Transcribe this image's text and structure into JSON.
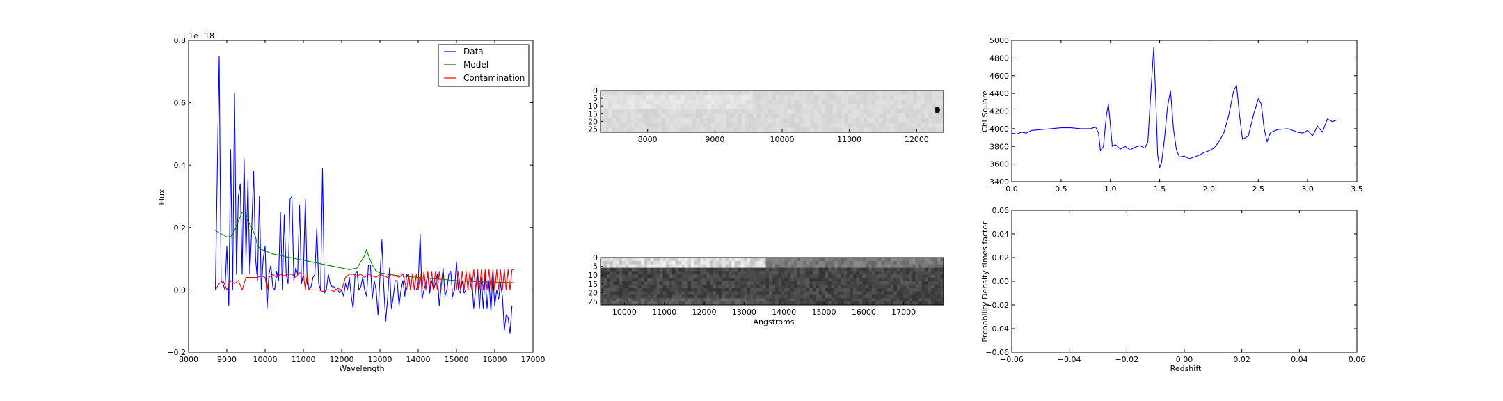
{
  "chart_data": [
    {
      "type": "line",
      "panel": "left",
      "title": "",
      "xlabel": "Wavelength",
      "ylabel": "Flux",
      "offset_text": "1e−18",
      "xlim": [
        8000,
        17000
      ],
      "ylim": [
        -0.2,
        0.8
      ],
      "xticks": [
        8000,
        9000,
        10000,
        11000,
        12000,
        13000,
        14000,
        15000,
        16000,
        17000
      ],
      "yticks": [
        -0.2,
        0.0,
        0.2,
        0.4,
        0.6,
        0.8
      ],
      "ytick_labels": [
        "−0.2",
        "0.0",
        "0.2",
        "0.4",
        "0.6",
        "0.8"
      ],
      "legend_position": "top-right",
      "series": [
        {
          "name": "Data",
          "color": "#0000ff",
          "x": [
            8700,
            8800,
            8850,
            8900,
            8950,
            9000,
            9050,
            9100,
            9150,
            9200,
            9250,
            9300,
            9350,
            9400,
            9450,
            9500,
            9550,
            9600,
            9650,
            9700,
            9750,
            9800,
            9850,
            9900,
            9950,
            10000,
            10050,
            10100,
            10150,
            10200,
            10250,
            10300,
            10350,
            10400,
            10450,
            10500,
            10550,
            10600,
            10650,
            10700,
            10750,
            10800,
            10850,
            10900,
            10950,
            11000,
            11050,
            11100,
            11150,
            11200,
            11250,
            11300,
            11350,
            11400,
            11450,
            11500,
            11550,
            11600,
            11650,
            11700,
            11750,
            11800,
            11850,
            11900,
            11950,
            12000,
            12050,
            12100,
            12150,
            12200,
            12250,
            12300,
            12350,
            12400,
            12450,
            12500,
            12550,
            12600,
            12650,
            12700,
            12750,
            12800,
            12850,
            12900,
            12950,
            13000,
            13050,
            13100,
            13150,
            13200,
            13250,
            13300,
            13350,
            13400,
            13450,
            13500,
            13550,
            13600,
            13650,
            13700,
            13750,
            13800,
            13850,
            13900,
            13950,
            14000,
            14050,
            14100,
            14150,
            14200,
            14250,
            14300,
            14350,
            14400,
            14450,
            14500,
            14550,
            14600,
            14650,
            14700,
            14750,
            14800,
            14850,
            14900,
            14950,
            15000,
            15050,
            15100,
            15150,
            15200,
            15250,
            15300,
            15350,
            15400,
            15450,
            15500,
            15550,
            15600,
            15650,
            15700,
            15750,
            15800,
            15850,
            15900,
            15950,
            16000,
            16050,
            16100,
            16150,
            16200,
            16250,
            16300,
            16350,
            16400,
            16450
          ],
          "y": [
            0.0,
            0.75,
            0.03,
            0.02,
            0.0,
            0.14,
            -0.05,
            0.45,
            0.0,
            0.63,
            0.05,
            0.3,
            0.34,
            0.05,
            0.42,
            0.1,
            0.35,
            0.05,
            0.2,
            0.38,
            0.1,
            0.03,
            0.3,
            0.0,
            0.1,
            0.14,
            -0.06,
            0.05,
            0.08,
            0.01,
            0.0,
            0.06,
            0.03,
            0.25,
            0.0,
            0.24,
            0.05,
            0.02,
            0.29,
            0.3,
            0.03,
            0.07,
            0.05,
            0.27,
            0.02,
            0.05,
            0.29,
            0.02,
            0.0,
            0.01,
            0.04,
            0.05,
            0.2,
            0.02,
            0.0,
            0.39,
            -0.01,
            0.0,
            0.05,
            0.02,
            0.01,
            0.01,
            0.0,
            0.0,
            -0.01,
            0.0,
            -0.02,
            0.02,
            0.0,
            0.04,
            -0.02,
            -0.06,
            0.05,
            0.06,
            0.0,
            0.01,
            0.04,
            0.0,
            -0.02,
            0.08,
            0.08,
            -0.03,
            0.03,
            0.0,
            -0.08,
            0.04,
            0.16,
            0.01,
            -0.1,
            -0.03,
            0.07,
            -0.06,
            -0.02,
            0.03,
            0.03,
            -0.05,
            0.0,
            0.03,
            -0.02,
            0.05,
            0.04,
            0.0,
            0.05,
            0.0,
            0.0,
            0.02,
            0.18,
            -0.03,
            0.0,
            0.02,
            0.05,
            -0.01,
            0.03,
            0.0,
            0.02,
            0.05,
            -0.05,
            0.01,
            0.07,
            -0.02,
            0.0,
            0.05,
            0.06,
            -0.02,
            0.0,
            0.09,
            0.0,
            -0.01,
            0.03,
            -0.01,
            0.0,
            0.0,
            0.0,
            0.04,
            -0.06,
            0.0,
            0.05,
            -0.06,
            0.04,
            -0.06,
            0.05,
            -0.06,
            0.03,
            -0.07,
            0.05,
            -0.05,
            0.0,
            -0.03,
            0.02,
            -0.02,
            -0.13,
            -0.08,
            -0.09,
            -0.14,
            -0.05
          ],
          "note_skip": ""
        },
        {
          "name": "Model",
          "color": "#008000",
          "x": [
            8700,
            8850,
            9000,
            9100,
            9200,
            9300,
            9400,
            9500,
            9550,
            9650,
            9750,
            9800,
            9900,
            10000,
            10200,
            10400,
            10600,
            10800,
            11000,
            11200,
            11400,
            11600,
            11800,
            12000,
            12200,
            12400,
            12500,
            12600,
            12650,
            12700,
            12800,
            12900,
            13000,
            13200,
            13500,
            14000,
            14500,
            15000,
            15500,
            16000,
            16500
          ],
          "y": [
            0.19,
            0.18,
            0.17,
            0.17,
            0.19,
            0.22,
            0.25,
            0.24,
            0.22,
            0.2,
            0.17,
            0.14,
            0.13,
            0.125,
            0.115,
            0.11,
            0.105,
            0.1,
            0.095,
            0.09,
            0.085,
            0.08,
            0.075,
            0.07,
            0.065,
            0.07,
            0.09,
            0.11,
            0.13,
            0.11,
            0.08,
            0.06,
            0.055,
            0.05,
            0.045,
            0.04,
            0.035,
            0.03,
            0.027,
            0.025,
            0.023
          ]
        },
        {
          "name": "Contamination",
          "color": "#ff0000",
          "x": [
            8700,
            8800,
            8900,
            9000,
            9100,
            9200,
            9300,
            9400,
            9500,
            9600,
            9700,
            9800,
            9900,
            10000,
            10050,
            10100,
            10200,
            10300,
            10400,
            10500,
            10600,
            10700,
            10800,
            10900,
            11000,
            11050,
            11100,
            11150,
            11200,
            11250,
            11300,
            11350,
            11400,
            11500,
            11600,
            11700,
            11800,
            11900,
            12000,
            12100,
            12200,
            12300,
            12400,
            12500,
            12600,
            12700,
            12800,
            12900,
            13000,
            13100,
            13200,
            13300,
            13400,
            13500,
            13600,
            13700,
            13750,
            13800,
            13850,
            13900,
            13950,
            14000,
            14050,
            14100,
            14150,
            14200,
            14250,
            14300,
            14350,
            14400,
            14450,
            14500,
            14550,
            14600,
            14650,
            14700,
            14750,
            14800,
            14850,
            14900,
            14950,
            15000,
            15050,
            15100,
            15150,
            15200,
            15250,
            15300,
            15350,
            15400,
            15450,
            15500,
            15550,
            15600,
            15650,
            15700,
            15750,
            15800,
            15850,
            15900,
            15950,
            16000,
            16050,
            16100,
            16150,
            16200,
            16250,
            16300,
            16350,
            16400,
            16450,
            16500
          ],
          "y": [
            0.0,
            0.02,
            0.03,
            0.0,
            0.03,
            0.02,
            0.03,
            0.0,
            0.04,
            0.04,
            0.04,
            0.04,
            0.045,
            0.04,
            0.0,
            0.04,
            0.05,
            0.04,
            0.05,
            0.045,
            0.05,
            0.05,
            0.04,
            0.055,
            0.05,
            0.0,
            0.05,
            0.0,
            0.0,
            0.0,
            0.0,
            0.0,
            0.0,
            -0.005,
            0.0,
            0.0,
            -0.005,
            0.005,
            0.0,
            0.04,
            0.05,
            0.05,
            0.045,
            0.05,
            0.04,
            0.05,
            0.045,
            0.04,
            0.05,
            0.045,
            0.04,
            0.05,
            0.045,
            0.04,
            0.05,
            0.0,
            0.05,
            0.0,
            0.05,
            0.0,
            0.05,
            0.0,
            0.05,
            0.0,
            0.06,
            0.0,
            0.06,
            0.0,
            0.06,
            0.0,
            0.06,
            0.0,
            0.06,
            0.0,
            0.0,
            0.0,
            0.0,
            0.0,
            0.0,
            0.0,
            0.0,
            0.0,
            0.06,
            0.0,
            0.06,
            0.0,
            0.06,
            0.0,
            0.06,
            0.0,
            0.065,
            0.0,
            0.065,
            0.0,
            0.065,
            0.0,
            0.065,
            0.0,
            0.065,
            0.0,
            0.065,
            0.0,
            0.065,
            0.0,
            0.065,
            0.0,
            0.065,
            0.0,
            0.065,
            0.0,
            0.065,
            0.065
          ]
        }
      ]
    },
    {
      "type": "heatmap",
      "panel": "center-top",
      "xlim": [
        7300,
        12400
      ],
      "ylim": [
        27,
        0
      ],
      "xticks": [
        8000,
        9000,
        10000,
        11000,
        12000
      ],
      "yticks": [
        0,
        5,
        10,
        15,
        20,
        25
      ],
      "colormap": "gray"
    },
    {
      "type": "heatmap",
      "panel": "center-bottom",
      "xlabel": "Angstroms",
      "xlim": [
        9400,
        18000
      ],
      "ylim": [
        27,
        0
      ],
      "xticks": [
        10000,
        11000,
        12000,
        13000,
        14000,
        15000,
        16000,
        17000
      ],
      "yticks": [
        0,
        5,
        10,
        15,
        20,
        25
      ],
      "colormap": "gray"
    },
    {
      "type": "line",
      "panel": "right-top",
      "ylabel": "Chi Square",
      "xlim": [
        0.0,
        3.5
      ],
      "ylim": [
        3400,
        5000
      ],
      "xticks": [
        0.0,
        0.5,
        1.0,
        1.5,
        2.0,
        2.5,
        3.0,
        3.5
      ],
      "yticks": [
        3400,
        3600,
        3800,
        4000,
        4200,
        4400,
        4600,
        4800,
        5000
      ],
      "series": [
        {
          "color": "#0000ff",
          "x": [
            0.0,
            0.05,
            0.1,
            0.15,
            0.2,
            0.3,
            0.4,
            0.5,
            0.6,
            0.7,
            0.8,
            0.85,
            0.88,
            0.9,
            0.93,
            0.96,
            0.98,
            1.0,
            1.02,
            1.05,
            1.1,
            1.15,
            1.2,
            1.25,
            1.3,
            1.35,
            1.38,
            1.41,
            1.44,
            1.46,
            1.48,
            1.5,
            1.52,
            1.55,
            1.58,
            1.61,
            1.64,
            1.67,
            1.7,
            1.75,
            1.8,
            1.85,
            1.9,
            1.95,
            2.0,
            2.05,
            2.1,
            2.15,
            2.2,
            2.25,
            2.28,
            2.31,
            2.34,
            2.37,
            2.4,
            2.45,
            2.5,
            2.53,
            2.56,
            2.59,
            2.62,
            2.65,
            2.7,
            2.8,
            2.9,
            2.95,
            3.0,
            3.05,
            3.1,
            3.15,
            3.2,
            3.25,
            3.3
          ],
          "y": [
            3950,
            3940,
            3960,
            3950,
            3980,
            3990,
            4000,
            4010,
            4010,
            4000,
            4000,
            4020,
            3950,
            3750,
            3800,
            4150,
            4280,
            4050,
            3800,
            3820,
            3770,
            3800,
            3760,
            3790,
            3810,
            3780,
            3850,
            4400,
            4920,
            4350,
            3700,
            3560,
            3620,
            3900,
            4250,
            4430,
            4000,
            3760,
            3680,
            3690,
            3660,
            3680,
            3700,
            3730,
            3750,
            3780,
            3850,
            3950,
            4150,
            4430,
            4490,
            4150,
            3880,
            3900,
            3920,
            4150,
            4340,
            4280,
            4000,
            3850,
            3950,
            3970,
            3990,
            4000,
            3960,
            3950,
            3980,
            3920,
            4030,
            3960,
            4110,
            4080,
            4100
          ]
        }
      ]
    },
    {
      "type": "line",
      "panel": "right-bottom",
      "xlabel": "Redshift",
      "ylabel": "Probability Density times factor",
      "xlim": [
        -0.06,
        0.06
      ],
      "ylim": [
        -0.06,
        0.06
      ],
      "xticks": [
        -0.06,
        -0.04,
        -0.02,
        0.0,
        0.02,
        0.04,
        0.06
      ],
      "xtick_labels": [
        "−0.06",
        "−0.04",
        "−0.02",
        "0.00",
        "0.02",
        "0.04",
        "0.06"
      ],
      "yticks": [
        -0.06,
        -0.04,
        -0.02,
        0.0,
        0.02,
        0.04,
        0.06
      ],
      "ytick_labels": [
        "−0.06",
        "−0.04",
        "−0.02",
        "0.00",
        "0.02",
        "0.04",
        "0.06"
      ],
      "series": []
    }
  ]
}
